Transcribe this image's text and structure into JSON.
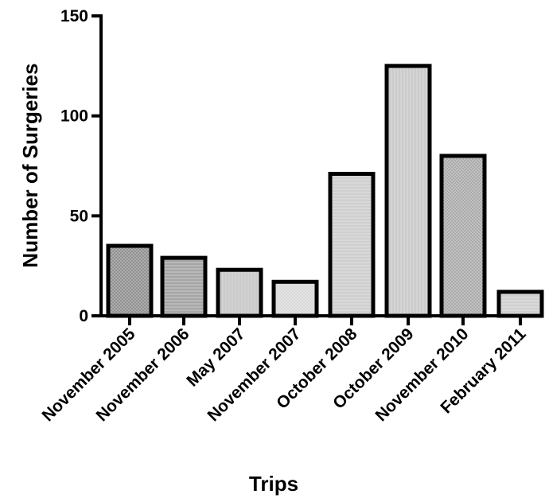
{
  "chart_data": {
    "type": "bar",
    "title": "",
    "xlabel": "Trips",
    "ylabel": "Number of  Surgeries",
    "categories": [
      "November 2005",
      "November 2006",
      "May 2007",
      "November 2007",
      "October 2008",
      "October 2009",
      "November 2010",
      "February 2011"
    ],
    "values": [
      35,
      29,
      23,
      17,
      71,
      125,
      80,
      12
    ],
    "ylim": [
      0,
      150
    ],
    "yticks": [
      0,
      50,
      100,
      150
    ],
    "grid": false,
    "legend": "none",
    "colors": {
      "axis": "#000000",
      "bar_outline": "#000000",
      "bar_fills": [
        "#8c8c8c",
        "#a6a6a6",
        "#d2d2d2",
        "#d8d8d8",
        "#cfcfcf",
        "#d4d4d4",
        "#a8a8a8",
        "#d0d0d0"
      ]
    }
  }
}
